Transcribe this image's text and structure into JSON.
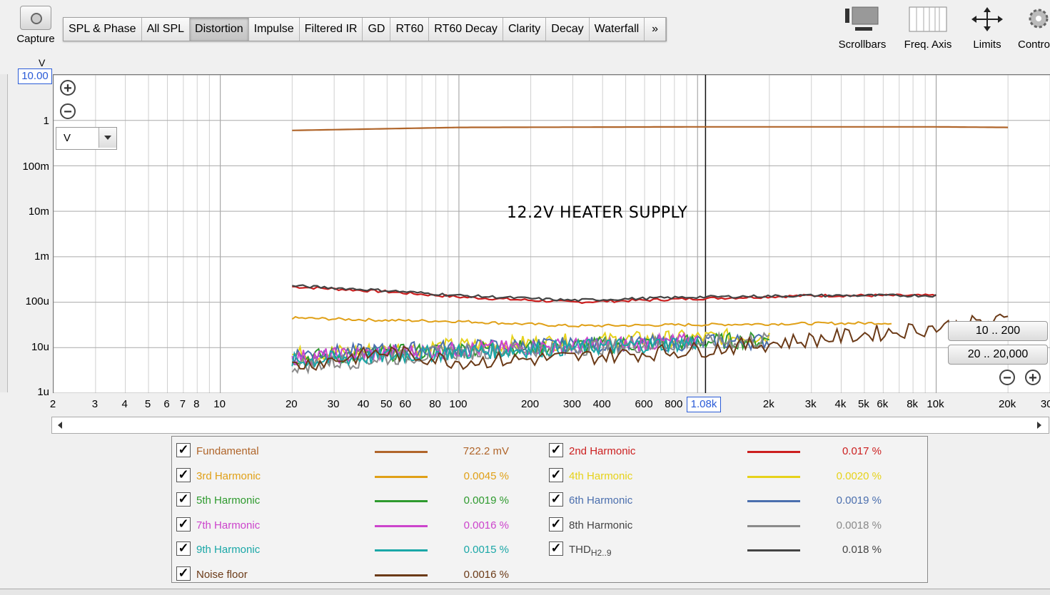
{
  "toolbar": {
    "capture_label": "Capture",
    "tabs": [
      "SPL & Phase",
      "All SPL",
      "Distortion",
      "Impulse",
      "Filtered IR",
      "GD",
      "RT60",
      "RT60 Decay",
      "Clarity",
      "Decay",
      "Waterfall",
      "»"
    ],
    "active_tab": "Distortion",
    "right_buttons": [
      "Scrollbars",
      "Freq. Axis",
      "Limits",
      "Contro"
    ]
  },
  "plot": {
    "y_unit": "V",
    "y_top_value": "10.00",
    "y_ticks": [
      "1",
      "100m",
      "10m",
      "1m",
      "100u",
      "10u",
      "1u"
    ],
    "x_ticks": [
      "2",
      "3",
      "4",
      "5",
      "6",
      "7",
      "8",
      "10",
      "20",
      "30",
      "40",
      "50",
      "60",
      "80",
      "100",
      "200",
      "300",
      "400",
      "600",
      "800",
      "2k",
      "3k",
      "4k",
      "5k",
      "6k",
      "8k",
      "10k",
      "20k",
      "30k"
    ],
    "cursor_freq": "1.08k",
    "unit_select": "V",
    "annotation": "12.2V HEATER SUPPLY",
    "range_buttons": [
      "10 .. 200",
      "20 .. 20,000"
    ]
  },
  "legend": {
    "items": [
      {
        "name": "Fundamental",
        "value": "722.2 mV",
        "color": "#b0652a"
      },
      {
        "name": "2nd Harmonic",
        "value": "0.017 %",
        "color": "#cc1f1f"
      },
      {
        "name": "3rd Harmonic",
        "value": "0.0045 %",
        "color": "#e0a017"
      },
      {
        "name": "4th Harmonic",
        "value": "0.0020 %",
        "color": "#e6d21a"
      },
      {
        "name": "5th Harmonic",
        "value": "0.0019 %",
        "color": "#2e9a2e"
      },
      {
        "name": "6th Harmonic",
        "value": "0.0019 %",
        "color": "#4b6fae"
      },
      {
        "name": "7th Harmonic",
        "value": "0.0016 %",
        "color": "#cc44cc"
      },
      {
        "name": "8th Harmonic",
        "value": "0.0018 %",
        "color": "#8a8a8a"
      },
      {
        "name": "9th Harmonic",
        "value": "0.0015 %",
        "color": "#1aa7a7"
      },
      {
        "name": "THD",
        "sub": "H2..9",
        "value": "0.018 %",
        "color": "#444444"
      },
      {
        "name": "Noise floor",
        "value": "0.0016 %",
        "color": "#6b3a17"
      }
    ]
  },
  "chart_data": {
    "type": "line",
    "x_scale": "log",
    "xlim": [
      2,
      30000
    ],
    "ylim": [
      1e-06,
      10
    ],
    "y_scale": "log",
    "grid": true,
    "series": [
      {
        "name": "Fundamental",
        "x": [
          20,
          100,
          1000,
          10000,
          20000
        ],
        "y": [
          0.6,
          0.7,
          0.72,
          0.72,
          0.7
        ]
      },
      {
        "name": "2nd Harmonic",
        "x": [
          20,
          50,
          100,
          300,
          1000,
          3000,
          10000
        ],
        "y": [
          0.00022,
          0.00017,
          0.00013,
          0.0001,
          0.00012,
          0.00014,
          0.00014
        ]
      },
      {
        "name": "3rd Harmonic",
        "x": [
          20,
          50,
          100,
          300,
          1000,
          3000,
          6500
        ],
        "y": [
          4.5e-05,
          4e-05,
          3.8e-05,
          3e-05,
          3.2e-05,
          3.4e-05,
          3.5e-05
        ]
      },
      {
        "name": "4th Harmonic",
        "x": [
          20,
          100,
          500,
          2000
        ],
        "y": [
          7e-06,
          1.1e-05,
          1.5e-05,
          1.8e-05
        ]
      },
      {
        "name": "5th Harmonic",
        "x": [
          20,
          100,
          500,
          2000
        ],
        "y": [
          6e-06,
          9e-06,
          1.2e-05,
          1.5e-05
        ]
      },
      {
        "name": "6th Harmonic",
        "x": [
          20,
          100,
          500,
          2000
        ],
        "y": [
          7e-06,
          1e-05,
          1.2e-05,
          1.4e-05
        ]
      },
      {
        "name": "7th Harmonic",
        "x": [
          20,
          100,
          500,
          1000
        ],
        "y": [
          6e-06,
          9e-06,
          1.2e-05,
          1.4e-05
        ]
      },
      {
        "name": "8th Harmonic",
        "x": [
          20,
          100,
          500,
          2000
        ],
        "y": [
          4e-06,
          8e-06,
          1.1e-05,
          1.5e-05
        ]
      },
      {
        "name": "9th Harmonic",
        "x": [
          20,
          100,
          500,
          1000
        ],
        "y": [
          5e-06,
          8e-06,
          1.1e-05,
          1.3e-05
        ]
      },
      {
        "name": "THD",
        "x": [
          20,
          50,
          100,
          300,
          1000,
          3000,
          10000
        ],
        "y": [
          0.00023,
          0.00018,
          0.00014,
          0.00011,
          0.00013,
          0.00014,
          0.00014
        ]
      },
      {
        "name": "Noise floor",
        "x": [
          20,
          50,
          100,
          300,
          1000,
          3000,
          10000,
          20000
        ],
        "y": [
          4e-06,
          8e-06,
          5e-06,
          6e-06,
          9e-06,
          1.5e-05,
          2.8e-05,
          4e-05
        ]
      }
    ]
  }
}
